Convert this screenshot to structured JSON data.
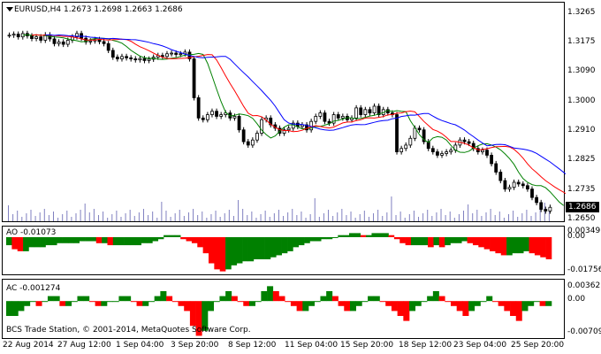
{
  "chart_header": {
    "symbol": "EURUSD,H4",
    "open": "1.2673",
    "high": "1.2698",
    "low": "1.2663",
    "close": "1.2686"
  },
  "main": {
    "price_labels": [
      "1.3265",
      "1.3175",
      "1.3090",
      "1.3000",
      "1.2910",
      "1.2825",
      "1.2735",
      "1.2650"
    ],
    "current_price": "1.2686"
  },
  "ao": {
    "label": "AO -0.01073",
    "scale_top": "0.00349",
    "scale_zero": "0.00",
    "scale_bottom": "-0.01756"
  },
  "ac": {
    "label": "AC -0.001274",
    "scale_top": "0.00362",
    "scale_zero": "0.00",
    "scale_bottom": "-0.00709"
  },
  "footer": {
    "copyright": "BCS Trade Station, © 2001-2014, MetaQuotes Software Corp."
  },
  "time_axis": [
    "22 Aug 2014",
    "27 Aug 12:00",
    "1 Sep 04:00",
    "3 Sep 20:00",
    "8 Sep 12:00",
    "11 Sep 04:00",
    "15 Sep 20:00",
    "18 Sep 12:00",
    "23 Sep 04:00",
    "25 Sep 20:00"
  ],
  "colors": {
    "candle_body": "#000000",
    "ma_fast": "#008000",
    "ma_mid": "#ff0000",
    "ma_slow": "#0000ff",
    "histogram_up": "#008000",
    "histogram_down": "#ff0000",
    "volume": "#8080c0"
  },
  "chart_data": {
    "type": "candlestick",
    "ylim": [
      1.265,
      1.3265
    ],
    "closes": [
      1.3195,
      1.3198,
      1.319,
      1.32,
      1.3193,
      1.3185,
      1.319,
      1.318,
      1.3196,
      1.3184,
      1.317,
      1.3175,
      1.3168,
      1.318,
      1.319,
      1.32,
      1.3186,
      1.3175,
      1.3178,
      1.3182,
      1.3176,
      1.317,
      1.315,
      1.313,
      1.3125,
      1.3132,
      1.3128,
      1.3125,
      1.3122,
      1.3126,
      1.312,
      1.3124,
      1.313,
      1.3135,
      1.3132,
      1.314,
      1.3142,
      1.3138,
      1.314,
      1.3145,
      1.3125,
      1.301,
      1.295,
      1.2945,
      1.296,
      1.297,
      1.2955,
      1.296,
      1.2965,
      1.295,
      1.2955,
      1.2915,
      1.288,
      1.287,
      1.2885,
      1.2905,
      1.2945,
      1.295,
      1.293,
      1.292,
      1.2905,
      1.2915,
      1.292,
      1.2935,
      1.2925,
      1.293,
      1.2915,
      1.294,
      1.2955,
      1.2965,
      1.294,
      1.2935,
      1.296,
      1.295,
      1.2955,
      1.2945,
      1.295,
      1.298,
      1.296,
      1.2975,
      1.2965,
      1.2985,
      1.296,
      1.2975,
      1.2965,
      1.296,
      1.285,
      1.286,
      1.287,
      1.289,
      1.292,
      1.2915,
      1.288,
      1.286,
      1.285,
      1.284,
      1.2845,
      1.285,
      1.2855,
      1.287,
      1.2885,
      1.288,
      1.2875,
      1.286,
      1.285,
      1.2855,
      1.284,
      1.2815,
      1.279,
      1.2765,
      1.274,
      1.2745,
      1.276,
      1.2755,
      1.275,
      1.274,
      1.2715,
      1.27,
      1.268,
      1.2675,
      1.2686
    ],
    "ao_values": [
      -0.004,
      -0.006,
      -0.007,
      -0.007,
      -0.005,
      -0.005,
      -0.005,
      -0.004,
      -0.004,
      -0.003,
      -0.003,
      -0.003,
      -0.003,
      -0.002,
      -0.002,
      -0.002,
      -0.003,
      -0.003,
      -0.004,
      -0.004,
      -0.004,
      -0.004,
      -0.004,
      -0.004,
      -0.003,
      -0.003,
      -0.002,
      -0.001,
      0.001,
      0.001,
      0.001,
      -0.001,
      -0.002,
      -0.003,
      -0.005,
      -0.008,
      -0.013,
      -0.016,
      -0.017,
      -0.016,
      -0.014,
      -0.013,
      -0.012,
      -0.012,
      -0.011,
      -0.011,
      -0.011,
      -0.01,
      -0.009,
      -0.008,
      -0.007,
      -0.005,
      -0.004,
      -0.003,
      -0.002,
      -0.002,
      -0.001,
      -0.001,
      0.0,
      0.001,
      0.001,
      0.002,
      0.002,
      0.001,
      0.001,
      0.002,
      0.002,
      0.002,
      0.001,
      -0.001,
      -0.003,
      -0.004,
      -0.004,
      -0.004,
      -0.004,
      -0.005,
      -0.004,
      -0.005,
      -0.004,
      -0.003,
      -0.003,
      -0.002,
      -0.003,
      -0.004,
      -0.005,
      -0.006,
      -0.007,
      -0.008,
      -0.009,
      -0.009,
      -0.008,
      -0.008,
      -0.007,
      -0.008,
      -0.009,
      -0.01,
      -0.011
    ],
    "ac_values": [
      -0.003,
      -0.003,
      -0.002,
      -0.001,
      0.0,
      -0.001,
      0.0,
      0.001,
      0.001,
      -0.001,
      -0.001,
      0.0,
      0.001,
      0.001,
      0.0,
      -0.001,
      -0.001,
      0.0,
      0.0,
      0.001,
      0.001,
      0.0,
      -0.001,
      -0.001,
      0.0,
      0.001,
      0.002,
      0.001,
      0.0,
      -0.001,
      -0.002,
      -0.005,
      -0.007,
      -0.006,
      -0.002,
      0.0,
      0.001,
      0.002,
      0.001,
      0.0,
      -0.001,
      -0.001,
      0.0,
      0.002,
      0.003,
      0.002,
      0.001,
      0.0,
      -0.001,
      -0.002,
      -0.002,
      -0.001,
      0.0,
      0.001,
      0.002,
      0.001,
      -0.001,
      -0.002,
      -0.002,
      -0.001,
      0.0,
      0.001,
      0.001,
      0.0,
      -0.001,
      -0.002,
      -0.003,
      -0.004,
      -0.002,
      -0.001,
      0.0,
      0.001,
      0.002,
      0.001,
      0.0,
      -0.001,
      -0.002,
      -0.003,
      -0.002,
      -0.001,
      0.0,
      0.001,
      0.0,
      -0.001,
      -0.002,
      -0.003,
      -0.004,
      -0.002,
      -0.001,
      0.0,
      -0.001,
      -0.001
    ]
  }
}
